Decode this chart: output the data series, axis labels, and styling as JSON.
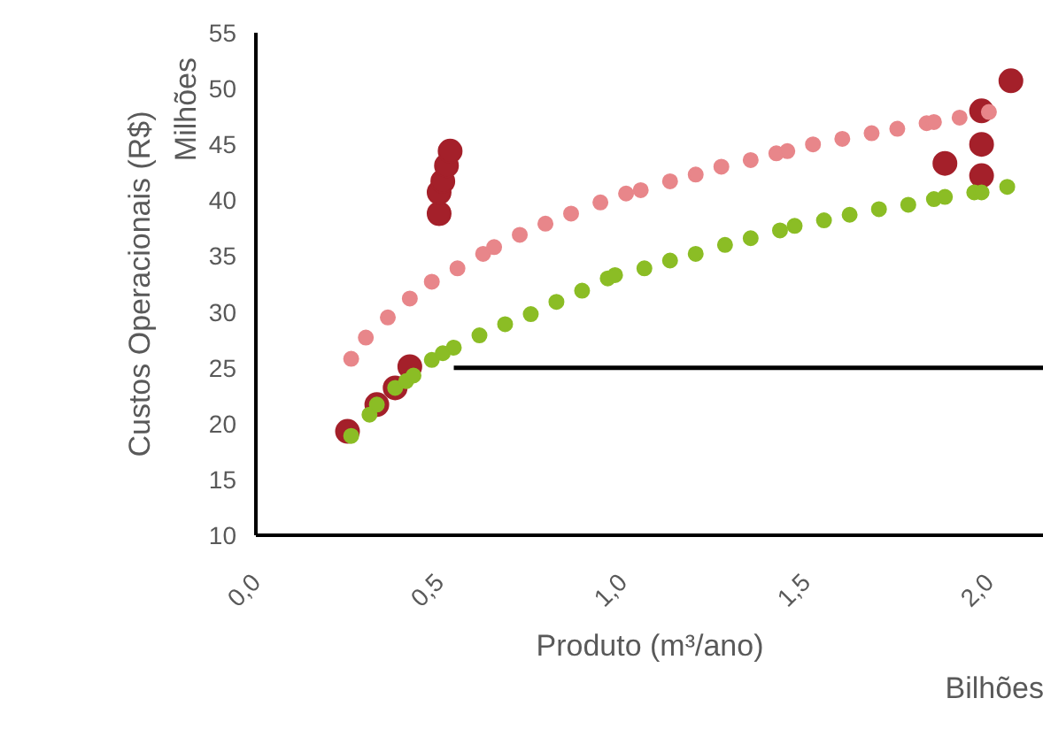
{
  "chart_data": {
    "type": "scatter",
    "xlabel": "Produto (m³/ano)",
    "ylabel": "Custos Operacionais (R$)",
    "annotations": [
      "Milhões",
      "Bilhões"
    ],
    "marker": "circle",
    "grid": false,
    "xlim": [
      0,
      2.15
    ],
    "xticks": [
      {
        "value": 0,
        "label": "0,0"
      },
      {
        "value": 0.5,
        "label": "0,5"
      },
      {
        "value": 1,
        "label": "1,0"
      },
      {
        "value": 1.5,
        "label": "1,5"
      },
      {
        "value": 2,
        "label": "2,0"
      }
    ],
    "ylim": [
      10,
      55
    ],
    "yticks": [
      10,
      15,
      20,
      25,
      30,
      35,
      40,
      45,
      50,
      55
    ],
    "series": [
      {
        "color": "#a4202a",
        "x": [
          0.25,
          0.33,
          0.38,
          0.42,
          0.5,
          0.5,
          0.51,
          0.52,
          0.53,
          2.06,
          1.98,
          1.98,
          1.88,
          1.98
        ],
        "values": [
          19.3,
          21.7,
          23.2,
          25.1,
          38.8,
          40.7,
          41.7,
          43.1,
          44.4,
          50.7,
          48.0,
          45.0,
          43.3,
          42.2
        ]
      },
      {
        "color": "#e8868a",
        "x": [
          0.26,
          0.3,
          0.36,
          0.42,
          0.48,
          0.55,
          0.62,
          0.65,
          0.72,
          0.79,
          0.86,
          0.94,
          1.01,
          1.05,
          1.13,
          1.2,
          1.27,
          1.35,
          1.42,
          1.45,
          1.52,
          1.6,
          1.68,
          1.75,
          1.83,
          1.85,
          1.92,
          2.0
        ],
        "values": [
          25.8,
          27.7,
          29.5,
          31.2,
          32.7,
          33.9,
          35.2,
          35.8,
          36.9,
          37.9,
          38.8,
          39.8,
          40.6,
          40.9,
          41.7,
          42.3,
          43.0,
          43.6,
          44.2,
          44.4,
          45.0,
          45.5,
          46.0,
          46.4,
          46.9,
          47.0,
          47.4,
          47.9
        ]
      },
      {
        "color": "#8bbd25",
        "x": [
          0.26,
          0.31,
          0.33,
          0.38,
          0.41,
          0.43,
          0.48,
          0.51,
          0.54,
          0.61,
          0.68,
          0.75,
          0.82,
          0.89,
          0.96,
          0.98,
          1.06,
          1.13,
          1.2,
          1.28,
          1.35,
          1.43,
          1.47,
          1.55,
          1.62,
          1.7,
          1.78,
          1.85,
          1.88,
          1.96,
          1.98,
          2.05
        ],
        "values": [
          18.9,
          20.8,
          21.7,
          23.2,
          23.8,
          24.3,
          25.7,
          26.3,
          26.8,
          27.9,
          28.9,
          29.8,
          30.9,
          31.9,
          33.0,
          33.3,
          33.9,
          34.6,
          35.2,
          36.0,
          36.6,
          37.3,
          37.7,
          38.2,
          38.7,
          39.2,
          39.6,
          40.1,
          40.3,
          40.7,
          40.7,
          41.2
        ]
      },
      {
        "type": "line",
        "marker": "none",
        "color": "#000000",
        "x": [
          0.54,
          2.15
        ],
        "values": [
          25,
          25
        ]
      }
    ]
  }
}
